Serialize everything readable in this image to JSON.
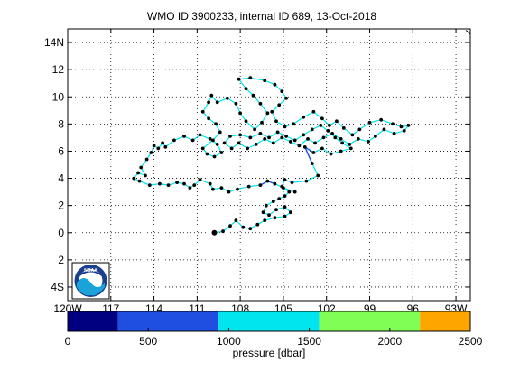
{
  "title": "WMO ID 3900233, internal ID 689, 13-Oct-2018",
  "logo_text": "NOAA",
  "map": {
    "lon_range": [
      -120,
      -92
    ],
    "lat_range": [
      -5,
      15
    ],
    "lat_ticks": [
      {
        "value": 14,
        "label": "14N"
      },
      {
        "value": 12,
        "label": "12"
      },
      {
        "value": 10,
        "label": "10"
      },
      {
        "value": 8,
        "label": "8"
      },
      {
        "value": 6,
        "label": "6"
      },
      {
        "value": 4,
        "label": "4"
      },
      {
        "value": 2,
        "label": "2"
      },
      {
        "value": 0,
        "label": "0"
      },
      {
        "value": -2,
        "label": "2"
      },
      {
        "value": -4,
        "label": "4S"
      }
    ],
    "lon_ticks": [
      {
        "value": -120,
        "label": "120W"
      },
      {
        "value": -117,
        "label": "117"
      },
      {
        "value": -114,
        "label": "114"
      },
      {
        "value": -111,
        "label": "111"
      },
      {
        "value": -108,
        "label": "108"
      },
      {
        "value": -105,
        "label": "105"
      },
      {
        "value": -102,
        "label": "102"
      },
      {
        "value": -99,
        "label": "99"
      },
      {
        "value": -96,
        "label": "96"
      },
      {
        "value": -93,
        "label": "93W"
      }
    ],
    "grid": true,
    "coastline": [
      [
        -92.3,
        14.9
      ],
      [
        -92.0,
        14.6
      ]
    ],
    "colors": {
      "track": "#00e5ee",
      "profile_dot": "#000000",
      "deep_segment": "#1f4fe0"
    }
  },
  "track": [
    [
      -104.2,
      3.0
    ],
    [
      -105.0,
      3.3
    ],
    [
      -105.6,
      3.6
    ],
    [
      -106.1,
      3.8
    ],
    [
      -106.6,
      3.5
    ],
    [
      -107.4,
      3.4
    ],
    [
      -108.2,
      3.2
    ],
    [
      -108.8,
      3.0
    ],
    [
      -109.3,
      3.3
    ],
    [
      -109.9,
      3.2
    ],
    [
      -110.1,
      3.6
    ],
    [
      -110.8,
      3.9
    ],
    [
      -111.2,
      3.5
    ],
    [
      -111.5,
      3.3
    ],
    [
      -111.9,
      3.6
    ],
    [
      -112.4,
      3.7
    ],
    [
      -113.0,
      3.5
    ],
    [
      -113.6,
      3.6
    ],
    [
      -114.3,
      3.5
    ],
    [
      -115.0,
      3.8
    ],
    [
      -115.4,
      4.0
    ],
    [
      -115.1,
      4.4
    ],
    [
      -114.6,
      4.2
    ],
    [
      -114.9,
      4.8
    ],
    [
      -114.5,
      5.4
    ],
    [
      -114.2,
      5.9
    ],
    [
      -114.0,
      6.4
    ],
    [
      -113.7,
      6.2
    ],
    [
      -113.4,
      6.6
    ],
    [
      -113.2,
      6.3
    ],
    [
      -112.6,
      6.8
    ],
    [
      -111.9,
      7.1
    ],
    [
      -111.3,
      6.8
    ],
    [
      -110.8,
      7.2
    ],
    [
      -110.1,
      6.9
    ],
    [
      -109.6,
      6.5
    ],
    [
      -109.3,
      5.9
    ],
    [
      -109.8,
      5.6
    ],
    [
      -110.3,
      5.8
    ],
    [
      -110.6,
      6.2
    ],
    [
      -109.9,
      6.8
    ],
    [
      -109.4,
      7.4
    ],
    [
      -109.7,
      8.0
    ],
    [
      -110.2,
      8.4
    ],
    [
      -110.6,
      8.9
    ],
    [
      -110.2,
      9.6
    ],
    [
      -110.0,
      10.1
    ],
    [
      -109.6,
      9.6
    ],
    [
      -108.9,
      9.9
    ],
    [
      -108.3,
      9.5
    ],
    [
      -108.0,
      8.8
    ],
    [
      -107.6,
      8.2
    ],
    [
      -107.0,
      7.6
    ],
    [
      -106.5,
      8.1
    ],
    [
      -106.1,
      8.8
    ],
    [
      -106.6,
      9.5
    ],
    [
      -107.1,
      10.1
    ],
    [
      -107.6,
      10.6
    ],
    [
      -108.1,
      11.3
    ],
    [
      -107.3,
      11.4
    ],
    [
      -106.3,
      11.2
    ],
    [
      -105.6,
      10.9
    ],
    [
      -105.1,
      10.4
    ],
    [
      -104.8,
      9.9
    ],
    [
      -105.3,
      9.4
    ],
    [
      -105.8,
      8.9
    ],
    [
      -105.5,
      8.2
    ],
    [
      -104.9,
      7.8
    ],
    [
      -104.3,
      8.0
    ],
    [
      -103.6,
      8.5
    ],
    [
      -102.9,
      8.9
    ],
    [
      -102.3,
      8.4
    ],
    [
      -101.8,
      7.9
    ],
    [
      -101.3,
      8.2
    ],
    [
      -100.8,
      7.7
    ],
    [
      -100.2,
      7.2
    ],
    [
      -99.7,
      7.6
    ],
    [
      -99.0,
      8.1
    ],
    [
      -98.2,
      8.3
    ],
    [
      -97.4,
      8.0
    ],
    [
      -96.8,
      7.8
    ],
    [
      -96.3,
      7.9
    ],
    [
      -96.6,
      7.5
    ],
    [
      -97.3,
      7.3
    ],
    [
      -98.0,
      7.6
    ],
    [
      -98.6,
      7.1
    ],
    [
      -99.1,
      6.7
    ],
    [
      -99.8,
      6.9
    ],
    [
      -100.4,
      6.5
    ],
    [
      -101.0,
      6.9
    ],
    [
      -101.6,
      7.3
    ],
    [
      -102.2,
      7.0
    ],
    [
      -102.8,
      6.6
    ],
    [
      -103.3,
      6.9
    ],
    [
      -103.9,
      6.4
    ],
    [
      -104.5,
      6.7
    ],
    [
      -105.1,
      7.0
    ],
    [
      -105.7,
      6.6
    ],
    [
      -106.3,
      6.9
    ],
    [
      -106.9,
      6.5
    ],
    [
      -107.5,
      6.2
    ],
    [
      -108.1,
      6.6
    ],
    [
      -108.6,
      6.2
    ],
    [
      -109.1,
      6.6
    ],
    [
      -108.7,
      7.1
    ],
    [
      -108.0,
      7.2
    ],
    [
      -107.3,
      7.0
    ],
    [
      -106.6,
      7.3
    ],
    [
      -106.0,
      7.0
    ],
    [
      -105.4,
      7.4
    ],
    [
      -104.8,
      7.1
    ],
    [
      -104.2,
      6.8
    ],
    [
      -103.6,
      7.2
    ],
    [
      -103.0,
      7.6
    ],
    [
      -102.4,
      7.9
    ],
    [
      -101.9,
      7.5
    ],
    [
      -101.4,
      7.0
    ],
    [
      -100.9,
      6.6
    ],
    [
      -100.3,
      6.2
    ],
    [
      -101.0,
      6.0
    ],
    [
      -101.7,
      5.8
    ],
    [
      -102.3,
      6.2
    ],
    [
      -102.9,
      5.9
    ],
    [
      -103.5,
      6.3
    ],
    [
      -103.0,
      5.1
    ],
    [
      -102.6,
      4.2
    ],
    [
      -103.4,
      3.8
    ],
    [
      -104.4,
      3.7
    ],
    [
      -104.9,
      3.9
    ],
    [
      -105.1,
      3.4
    ],
    [
      -104.6,
      3.0
    ],
    [
      -104.9,
      2.7
    ],
    [
      -105.3,
      2.5
    ],
    [
      -105.7,
      2.3
    ],
    [
      -106.2,
      2.0
    ],
    [
      -106.4,
      1.5
    ],
    [
      -106.0,
      1.3
    ],
    [
      -105.5,
      1.7
    ],
    [
      -104.9,
      1.9
    ],
    [
      -104.5,
      1.5
    ],
    [
      -104.9,
      1.2
    ],
    [
      -105.6,
      1.1
    ],
    [
      -106.3,
      0.9
    ],
    [
      -106.8,
      0.6
    ],
    [
      -107.3,
      0.3
    ],
    [
      -107.8,
      0.4
    ],
    [
      -108.3,
      0.9
    ],
    [
      -108.7,
      0.5
    ],
    [
      -109.2,
      0.1
    ],
    [
      -109.8,
      0.0
    ]
  ],
  "deep_segments": [
    {
      "from": 2,
      "to": 4
    },
    {
      "from": 122,
      "to": 124
    }
  ],
  "colorbar": {
    "label": "pressure [dbar]",
    "range": [
      0,
      2500
    ],
    "ticks": [
      {
        "value": 0,
        "label": "0"
      },
      {
        "value": 500,
        "label": "500"
      },
      {
        "value": 1000,
        "label": "1000"
      },
      {
        "value": 1500,
        "label": "1500"
      },
      {
        "value": 2000,
        "label": "2000"
      },
      {
        "value": 2500,
        "label": "2500"
      }
    ],
    "bins": [
      {
        "from": 0,
        "to": 312,
        "color": "#000080"
      },
      {
        "from": 312,
        "to": 937,
        "color": "#1f4fe0"
      },
      {
        "from": 937,
        "to": 1562,
        "color": "#00e5ee"
      },
      {
        "from": 1562,
        "to": 2187,
        "color": "#7fff55"
      },
      {
        "from": 2187,
        "to": 2500,
        "color": "#ffa500"
      }
    ]
  }
}
